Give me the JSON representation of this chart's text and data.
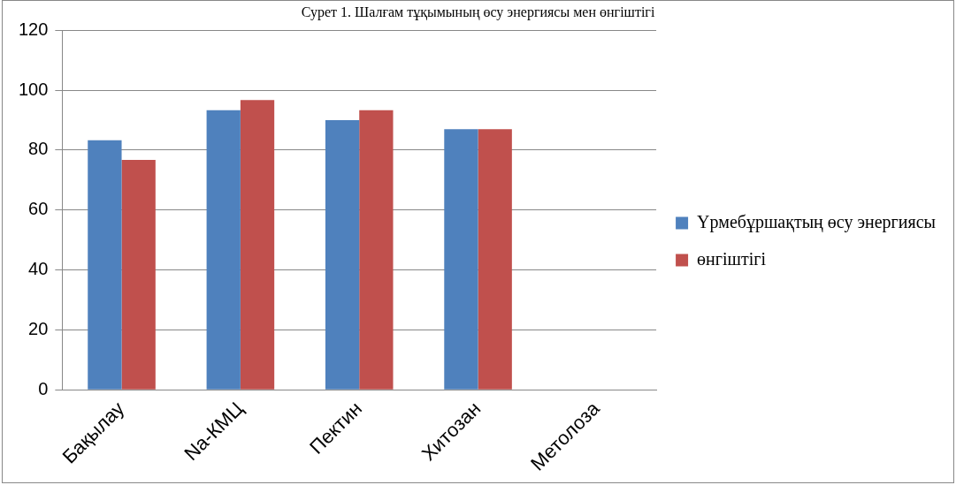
{
  "chart_data": {
    "type": "bar",
    "title": "Сурет 1. Шалғам тұқымының өсу энергиясы мен өнгіштігі",
    "categories": [
      "Бақылау",
      "Na-КМЦ",
      "Пектин",
      "Хитозан",
      "Метолоза"
    ],
    "series": [
      {
        "name": "Үрмебұршақтың өсу энергиясы",
        "color": "#4f81bd",
        "values": [
          83.3,
          93.3,
          90,
          87,
          null
        ]
      },
      {
        "name": "өнгіштігі",
        "color": "#c0504d",
        "values": [
          76.7,
          96.7,
          93.3,
          87,
          null
        ]
      }
    ],
    "ylim": [
      0,
      120
    ],
    "yticks": [
      0,
      20,
      40,
      60,
      80,
      100,
      120
    ],
    "grid": "y",
    "legend": "right"
  }
}
